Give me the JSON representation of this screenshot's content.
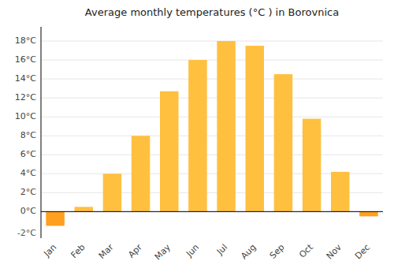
{
  "chart_data": {
    "type": "bar",
    "title": "Average monthly temperatures (°C ) in Borovnica",
    "categories": [
      "Jan",
      "Feb",
      "Mar",
      "Apr",
      "May",
      "Jun",
      "Jul",
      "Aug",
      "Sep",
      "Oct",
      "Nov",
      "Dec"
    ],
    "values": [
      -1.5,
      0.5,
      4.0,
      8.0,
      12.7,
      16.0,
      18.0,
      17.5,
      14.5,
      9.8,
      4.2,
      -0.5
    ],
    "colors": [
      "#FFA020",
      "#FFC040",
      "#FFC040",
      "#FFC040",
      "#FFC040",
      "#FFC040",
      "#FFC040",
      "#FFC040",
      "#FFC040",
      "#FFC040",
      "#FFC040",
      "#FFA020"
    ],
    "ylim": [
      -2.8,
      19.5
    ],
    "yticks": [
      {
        "value": 0,
        "label": "0°C"
      },
      {
        "value": 2,
        "label": "2°C"
      },
      {
        "value": 4,
        "label": "4°C"
      },
      {
        "value": 6,
        "label": "6°C"
      },
      {
        "value": 8,
        "label": "8°C"
      },
      {
        "value": 10,
        "label": "10°C"
      },
      {
        "value": 12,
        "label": "12°C"
      },
      {
        "value": 14,
        "label": "14°C"
      },
      {
        "value": 16,
        "label": "16°C"
      },
      {
        "value": 18,
        "label": "18°C"
      }
    ],
    "annotations": [
      {
        "text": "-2°C",
        "y": -2.3
      }
    ],
    "grid": true
  }
}
